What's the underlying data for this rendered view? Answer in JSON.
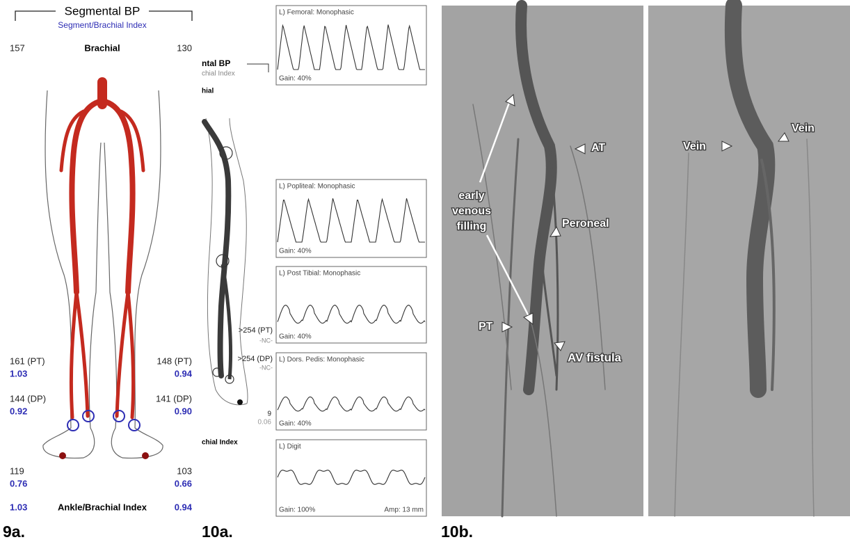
{
  "panel_9a": {
    "label": "9a.",
    "title": "Segmental BP",
    "subtitle": "Segment/Brachial Index",
    "brachial": {
      "left": "157",
      "name": "Brachial",
      "right": "130"
    },
    "readings": {
      "left": [
        [
          "161 (PT)",
          "1.03"
        ],
        [
          "144 (DP)",
          "0.92"
        ],
        [
          "119",
          "0.76"
        ]
      ],
      "right": [
        [
          "148 (PT)",
          "0.94"
        ],
        [
          "141 (DP)",
          "0.90"
        ],
        [
          "103",
          "0.66"
        ]
      ]
    },
    "footer": {
      "left": "1.03",
      "name": "Ankle/Brachial Index",
      "right": "0.94"
    }
  },
  "panel_10a": {
    "label": "10a.",
    "cropped": {
      "title": "ntal BP",
      "subtitle": "chial Index",
      "brachial": "hial",
      "abi": "chial Index"
    },
    "readings": [
      ">254 (PT)",
      "-NC-",
      ">254 (DP)",
      "-NC-",
      "9",
      "0.06"
    ],
    "waveforms": [
      {
        "title": "L) Femoral: Monophasic",
        "gain": "Gain: 40%"
      },
      {
        "title": "L) Popliteal: Monophasic",
        "gain": "Gain: 40%"
      },
      {
        "title": "L) Post Tibial: Monophasic",
        "gain": "Gain: 40%"
      },
      {
        "title": "L) Dors. Pedis: Monophasic",
        "gain": "Gain: 40%"
      },
      {
        "title": "L) Digit",
        "gain": "Gain: 100%",
        "amp": "Amp: 13 mm"
      }
    ]
  },
  "panel_10b": {
    "label": "10b.",
    "annotations": {
      "at": "AT",
      "early": [
        "early",
        "venous",
        "filling"
      ],
      "peroneal": "Peroneal",
      "pt": "PT",
      "av": "AV fistula",
      "vein_left": "Vein",
      "vein_right": "Vein"
    }
  }
}
